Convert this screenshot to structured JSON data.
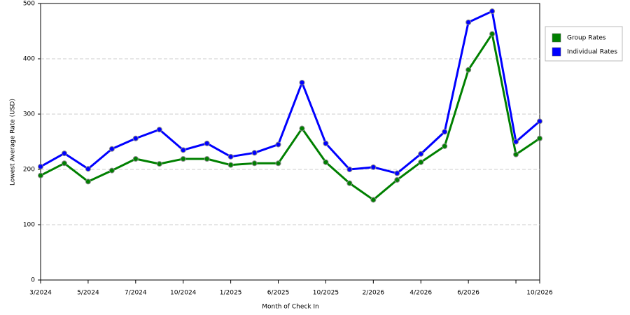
{
  "chart_data": {
    "type": "line",
    "x_label": "Month of Check In",
    "y_label": "Lowest Average Rate (USD)",
    "categories": [
      "3/2024",
      null,
      "5/2024",
      null,
      "7/2024",
      null,
      "10/2024",
      null,
      "1/2025",
      null,
      "6/2025",
      null,
      "10/2025",
      null,
      "2/2026",
      null,
      "4/2026",
      null,
      "6/2026",
      null,
      null,
      "10/2026"
    ],
    "series": [
      {
        "name": "Group Rates",
        "color": "#008000",
        "values": [
          189,
          211,
          178,
          198,
          219,
          210,
          219,
          219,
          208,
          211,
          211,
          274,
          213,
          175,
          145,
          181,
          213,
          242,
          380,
          445,
          227,
          256
        ]
      },
      {
        "name": "Individual Rates",
        "color": "#0000ff",
        "values": [
          205,
          229,
          201,
          237,
          256,
          272,
          235,
          247,
          223,
          230,
          245,
          357,
          247,
          200,
          204,
          193,
          228,
          268,
          466,
          486,
          250,
          287
        ]
      }
    ],
    "ylim": [
      0,
      500
    ],
    "yticks": [
      0,
      100,
      200,
      300,
      400,
      500
    ],
    "grid": true,
    "legend": "right"
  }
}
